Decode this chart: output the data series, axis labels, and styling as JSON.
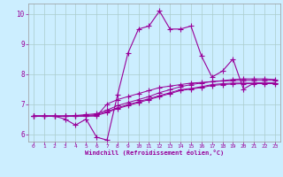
{
  "xlabel": "Windchill (Refroidissement éolien,°C)",
  "bg_color": "#cceeff",
  "line_color": "#990099",
  "grid_color": "#aacccc",
  "xlim": [
    -0.5,
    23.5
  ],
  "ylim": [
    5.75,
    10.35
  ],
  "yticks": [
    6,
    7,
    8,
    9,
    10
  ],
  "xticks": [
    0,
    1,
    2,
    3,
    4,
    5,
    6,
    7,
    8,
    9,
    10,
    11,
    12,
    13,
    14,
    15,
    16,
    17,
    18,
    19,
    20,
    21,
    22,
    23
  ],
  "series": [
    [
      6.6,
      6.6,
      6.6,
      6.5,
      6.3,
      6.5,
      5.9,
      5.8,
      7.3,
      8.7,
      9.5,
      9.6,
      10.1,
      9.5,
      9.5,
      9.6,
      8.6,
      7.9,
      8.1,
      8.5,
      7.5,
      7.7,
      7.7,
      7.7
    ],
    [
      6.6,
      6.6,
      6.6,
      6.6,
      6.6,
      6.6,
      6.6,
      7.0,
      7.15,
      7.25,
      7.35,
      7.45,
      7.55,
      7.6,
      7.65,
      7.7,
      7.72,
      7.75,
      7.77,
      7.78,
      7.79,
      7.79,
      7.79,
      7.79
    ],
    [
      6.6,
      6.6,
      6.6,
      6.6,
      6.62,
      6.65,
      6.68,
      6.8,
      6.95,
      7.05,
      7.15,
      7.25,
      7.38,
      7.48,
      7.58,
      7.65,
      7.7,
      7.75,
      7.78,
      7.82,
      7.84,
      7.84,
      7.84,
      7.82
    ],
    [
      6.6,
      6.6,
      6.6,
      6.6,
      6.6,
      6.62,
      6.65,
      6.75,
      6.88,
      6.98,
      7.08,
      7.18,
      7.28,
      7.38,
      7.48,
      7.52,
      7.58,
      7.65,
      7.68,
      7.7,
      7.7,
      7.7,
      7.7,
      7.7
    ],
    [
      6.6,
      6.6,
      6.6,
      6.6,
      6.6,
      6.6,
      6.62,
      6.72,
      6.85,
      6.95,
      7.05,
      7.15,
      7.25,
      7.35,
      7.45,
      7.5,
      7.55,
      7.62,
      7.65,
      7.67,
      7.68,
      7.68,
      7.68,
      7.68
    ]
  ],
  "marker": "+",
  "marker_size": 4,
  "linewidth": 0.8
}
